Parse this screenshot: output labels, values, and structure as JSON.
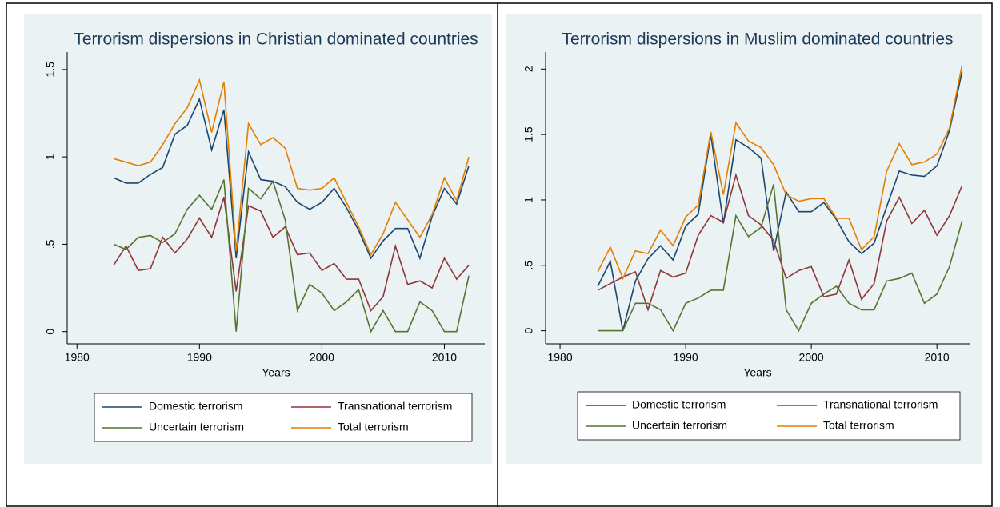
{
  "chart_data": [
    {
      "type": "line",
      "title": "Terrorism dispersions in Christian dominated countries",
      "x_label": "Years",
      "x": [
        1983,
        1984,
        1985,
        1986,
        1987,
        1988,
        1989,
        1990,
        1991,
        1992,
        1993,
        1994,
        1995,
        1996,
        1997,
        1998,
        1999,
        2000,
        2001,
        2002,
        2003,
        2004,
        2005,
        2006,
        2007,
        2008,
        2009,
        2010,
        2011,
        2012
      ],
      "xlim": [
        1979.2,
        2013.3
      ],
      "xticks": [
        1980,
        1990,
        2000,
        2010
      ],
      "ylim": [
        -0.07,
        1.6
      ],
      "yticks": [
        0,
        {
          "value": 0.5,
          "label": ".5"
        },
        1,
        1.5
      ],
      "series": [
        {
          "name": "Domestic terrorism",
          "color": "#1a476f",
          "values": [
            0.88,
            0.85,
            0.85,
            0.9,
            0.94,
            1.13,
            1.18,
            1.33,
            1.04,
            1.27,
            0.42,
            1.03,
            0.87,
            0.86,
            0.83,
            0.74,
            0.7,
            0.74,
            0.82,
            0.71,
            0.58,
            0.42,
            0.52,
            0.59,
            0.59,
            0.42,
            0.66,
            0.82,
            0.73,
            0.95
          ]
        },
        {
          "name": "Transnational terrorism",
          "color": "#90353b",
          "values": [
            0.38,
            0.49,
            0.35,
            0.36,
            0.54,
            0.45,
            0.53,
            0.65,
            0.54,
            0.77,
            0.23,
            0.72,
            0.69,
            0.54,
            0.6,
            0.44,
            0.45,
            0.35,
            0.39,
            0.3,
            0.3,
            0.12,
            0.2,
            0.49,
            0.27,
            0.29,
            0.25,
            0.42,
            0.3,
            0.38
          ]
        },
        {
          "name": "Uncertain terrorism",
          "color": "#55752f",
          "values": [
            0.5,
            0.47,
            0.54,
            0.55,
            0.51,
            0.56,
            0.7,
            0.78,
            0.7,
            0.87,
            0,
            0.82,
            0.76,
            0.86,
            0.64,
            0.12,
            0.27,
            0.22,
            0.12,
            0.17,
            0.24,
            0,
            0.12,
            0,
            0,
            0.17,
            0.12,
            0,
            0,
            0.32
          ]
        },
        {
          "name": "Total terrorism",
          "color": "#e37e00",
          "values": [
            0.99,
            0.97,
            0.95,
            0.97,
            1.07,
            1.19,
            1.28,
            1.44,
            1.14,
            1.43,
            0.46,
            1.19,
            1.07,
            1.11,
            1.05,
            0.82,
            0.81,
            0.82,
            0.88,
            0.74,
            0.6,
            0.44,
            0.56,
            0.74,
            0.64,
            0.54,
            0.67,
            0.88,
            0.75,
            1.0
          ]
        }
      ]
    },
    {
      "type": "line",
      "title": "Terrorism dispersions in Muslim dominated countries",
      "x_label": "Years",
      "x": [
        1983,
        1984,
        1985,
        1986,
        1987,
        1988,
        1989,
        1990,
        1991,
        1992,
        1993,
        1994,
        1995,
        1996,
        1997,
        1998,
        1999,
        2000,
        2001,
        2002,
        2003,
        2004,
        2005,
        2006,
        2007,
        2008,
        2009,
        2010,
        2011,
        2012
      ],
      "xlim": [
        1978.85,
        2012.6
      ],
      "xticks": [
        1980,
        1990,
        2000,
        2010
      ],
      "ylim": [
        -0.1,
        2.13
      ],
      "yticks": [
        0,
        {
          "value": 0.5,
          "label": ".5"
        },
        1,
        1.5,
        2
      ],
      "series": [
        {
          "name": "Domestic terrorism",
          "color": "#1a476f",
          "values": [
            0.34,
            0.53,
            0,
            0.38,
            0.55,
            0.65,
            0.54,
            0.8,
            0.89,
            1.5,
            0.82,
            1.46,
            1.4,
            1.32,
            0.61,
            1.06,
            0.91,
            0.91,
            0.98,
            0.85,
            0.68,
            0.59,
            0.67,
            0.95,
            1.22,
            1.19,
            1.18,
            1.26,
            1.53,
            1.98
          ]
        },
        {
          "name": "Transnational terrorism",
          "color": "#90353b",
          "values": [
            0.31,
            0.36,
            0.41,
            0.45,
            0.16,
            0.46,
            0.41,
            0.44,
            0.73,
            0.88,
            0.83,
            1.19,
            0.88,
            0.81,
            0.69,
            0.4,
            0.46,
            0.49,
            0.26,
            0.28,
            0.54,
            0.24,
            0.36,
            0.84,
            1.02,
            0.82,
            0.92,
            0.73,
            0.88,
            1.11
          ]
        },
        {
          "name": "Uncertain terrorism",
          "color": "#55752f",
          "values": [
            0,
            0,
            0,
            0.21,
            0.21,
            0.16,
            0,
            0.21,
            0.25,
            0.31,
            0.31,
            0.88,
            0.72,
            0.79,
            1.12,
            0.16,
            0,
            0.21,
            0.28,
            0.34,
            0.21,
            0.16,
            0.16,
            0.38,
            0.4,
            0.44,
            0.21,
            0.28,
            0.49,
            0.84
          ]
        },
        {
          "name": "Total terrorism",
          "color": "#e37e00",
          "values": [
            0.45,
            0.64,
            0.4,
            0.61,
            0.59,
            0.77,
            0.65,
            0.87,
            0.96,
            1.52,
            1.04,
            1.59,
            1.45,
            1.4,
            1.27,
            1.04,
            0.99,
            1.01,
            1.01,
            0.86,
            0.86,
            0.62,
            0.72,
            1.22,
            1.43,
            1.27,
            1.29,
            1.35,
            1.55,
            2.03
          ]
        }
      ]
    }
  ]
}
